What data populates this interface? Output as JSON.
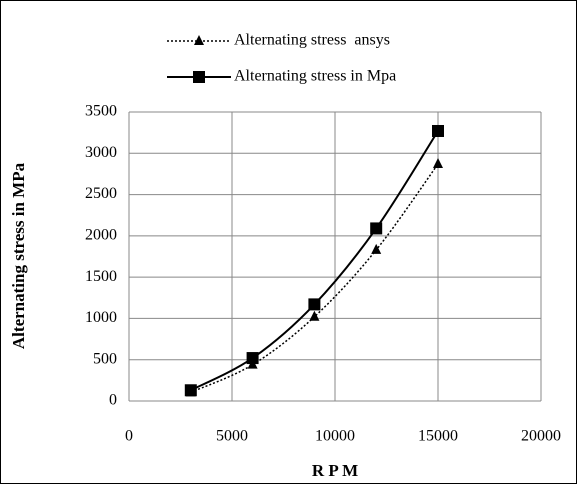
{
  "chart_data": {
    "type": "scatter",
    "x_label": "R P M",
    "y_label": "Alternating stress in MPa",
    "x": [
      3000,
      6000,
      9000,
      12000,
      15000
    ],
    "series": [
      {
        "name": "Alternating stress  ansys",
        "color": "#000000",
        "line": "dotted",
        "marker": "triangle",
        "values": [
          105,
          440,
          1020,
          1830,
          2870
        ]
      },
      {
        "name": "Alternating stress in Mpa",
        "color": "#000000",
        "line": "solid",
        "marker": "square",
        "values": [
          130,
          520,
          1170,
          2090,
          3270
        ]
      }
    ],
    "xlim": [
      0,
      20000
    ],
    "xticks": [
      0,
      5000,
      10000,
      15000,
      20000
    ],
    "ylim": [
      0,
      3500
    ],
    "yticks": [
      0,
      500,
      1000,
      1500,
      2000,
      2500,
      3000,
      3500
    ],
    "grid": true,
    "legend": "top",
    "smooth": true
  }
}
